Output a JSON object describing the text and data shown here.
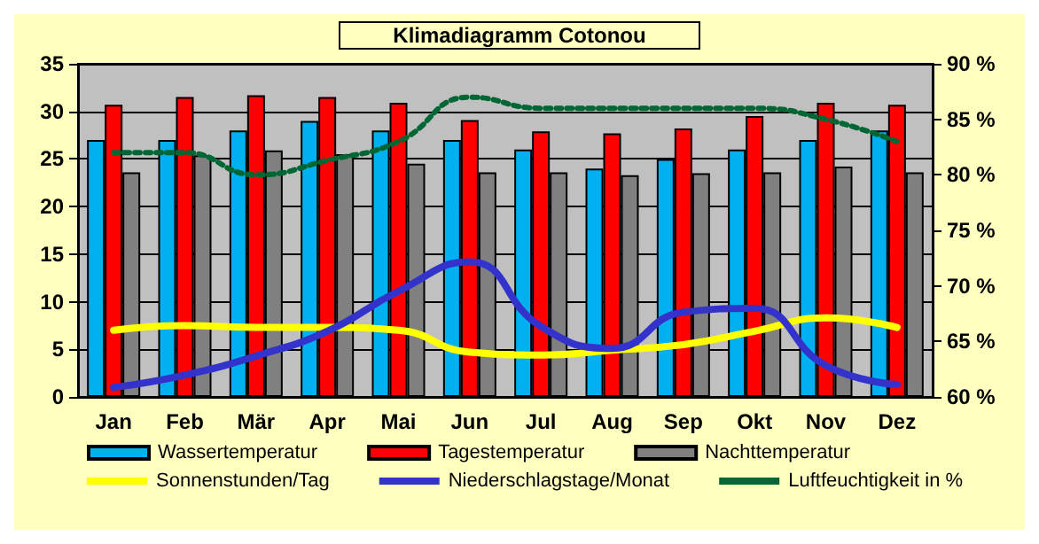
{
  "chart_data": {
    "type": "bar",
    "title": "Klimadiagramm Cotonou",
    "categories": [
      "Jan",
      "Feb",
      "Mär",
      "Apr",
      "Mai",
      "Jun",
      "Jul",
      "Aug",
      "Sep",
      "Okt",
      "Nov",
      "Dez"
    ],
    "series": [
      {
        "name": "Wassertemperatur",
        "color": "#00b0f0",
        "values": [
          27,
          27,
          28,
          29,
          28,
          27,
          26,
          24,
          25,
          26,
          27,
          28
        ]
      },
      {
        "name": "Tagestemperatur",
        "color": "#ff0000",
        "values": [
          30.7,
          31.5,
          31.7,
          31.5,
          30.9,
          29.1,
          27.9,
          27.7,
          28.2,
          29.5,
          30.9,
          30.7
        ]
      },
      {
        "name": "Nachttemperatur",
        "color": "#808080",
        "values": [
          23.6,
          25.4,
          25.9,
          25.5,
          24.5,
          23.6,
          23.6,
          23.3,
          23.5,
          23.6,
          24.2,
          23.6
        ]
      },
      {
        "name": "Sonnenstunden/Tag",
        "type": "line",
        "color": "#ffff00",
        "values": [
          7.0,
          7.5,
          7.3,
          7.3,
          7.0,
          4.7,
          4.4,
          4.9,
          5.5,
          6.9,
          8.3,
          7.3
        ]
      },
      {
        "name": "Niederschlagstage/Monat",
        "type": "line",
        "color": "#3333cc",
        "values": [
          1.0,
          2.3,
          4.3,
          6.9,
          11.1,
          14.2,
          7.4,
          5.1,
          8.9,
          9.3,
          3.3,
          1.3
        ]
      },
      {
        "name": "Luftfeuchtigkeit in %",
        "type": "line",
        "axis": "y2",
        "line_style": "dotted",
        "color": "#006633",
        "values": [
          82,
          82,
          80,
          81.3,
          83,
          87,
          86,
          86,
          86,
          86,
          85,
          83
        ]
      }
    ],
    "ylim": [
      0,
      35
    ],
    "yticks": [
      0,
      5,
      10,
      15,
      20,
      25,
      30,
      35
    ],
    "y2lim": [
      60,
      90
    ],
    "y2ticks": [
      {
        "value": 60,
        "label": "60 %"
      },
      {
        "value": 65,
        "label": "65 %"
      },
      {
        "value": 70,
        "label": "70 %"
      },
      {
        "value": 75,
        "label": "75 %"
      },
      {
        "value": 80,
        "label": "80 %"
      },
      {
        "value": 85,
        "label": "85 %"
      },
      {
        "value": 90,
        "label": "90 %"
      }
    ],
    "grid": "y",
    "legend": "bottom",
    "marker": "none"
  }
}
